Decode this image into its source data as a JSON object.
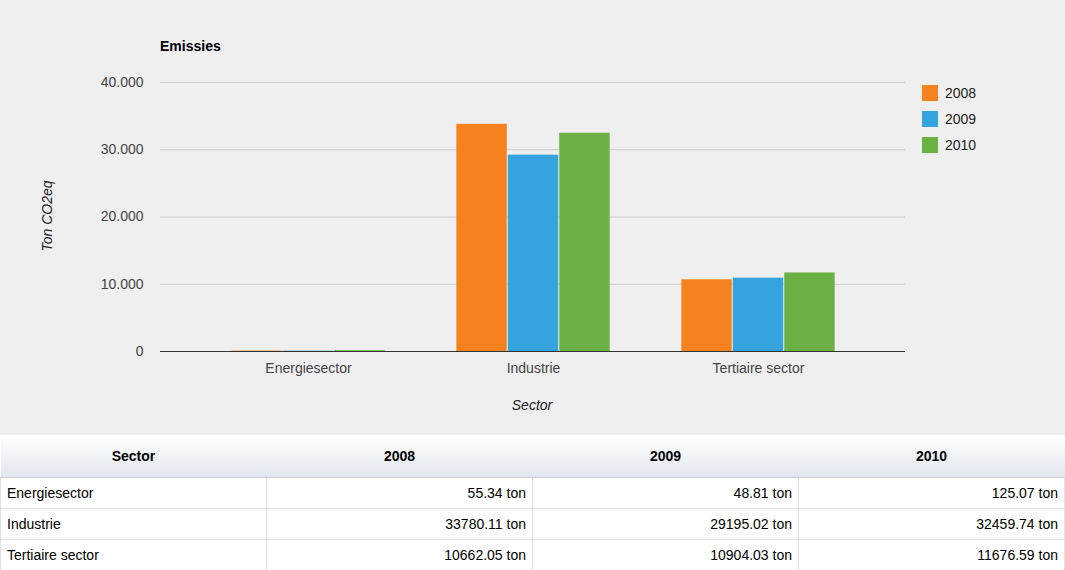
{
  "chart_data": {
    "type": "bar",
    "title": "Emissies",
    "x_label": "Sector",
    "y_label": "Ton CO2eq",
    "categories": [
      "Energiesector",
      "Industrie",
      "Tertiaire sector"
    ],
    "series": [
      {
        "name": "2008",
        "color": "#f5821f",
        "values": [
          55.34,
          33780.11,
          10662.05
        ]
      },
      {
        "name": "2009",
        "color": "#35a4de",
        "values": [
          48.81,
          29195.02,
          10904.03
        ]
      },
      {
        "name": "2010",
        "color": "#6ab042",
        "values": [
          125.07,
          32459.74,
          11676.59
        ]
      }
    ],
    "ylim": [
      0,
      40000
    ],
    "yticks": [
      0,
      {
        "value": 10000,
        "label": "10.000"
      },
      {
        "value": 20000,
        "label": "20.000"
      },
      {
        "value": 30000,
        "label": "30.000"
      },
      {
        "value": 40000,
        "label": "40.000"
      }
    ],
    "grid": true,
    "legend": "right"
  },
  "table": {
    "header": [
      "Sector",
      "2008",
      "2009",
      "2010"
    ],
    "rows": [
      [
        "Energiesector",
        "55.34 ton",
        "48.81 ton",
        "125.07 ton"
      ],
      [
        "Industrie",
        "33780.11 ton",
        "29195.02 ton",
        "32459.74 ton"
      ],
      [
        "Tertiaire sector",
        "10662.05 ton",
        "10904.03 ton",
        "11676.59 ton"
      ]
    ]
  }
}
